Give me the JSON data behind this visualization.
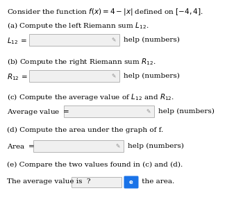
{
  "title_line": "Consider the function $f(x) = 4 - |x|$ defined on $[-4, 4]$.",
  "part_a_label": "(a) Compute the left Riemann sum $L_{12}$.",
  "part_a_var": "$L_{12}\\, =$",
  "part_b_label": "(b) Compute the right Riemann sum $R_{12}$.",
  "part_b_var": "$R_{12}\\, =$",
  "part_c_label": "(c) Compute the average value of $L_{12}$ and $R_{12}$.",
  "part_c_var": "Average value $=$",
  "part_d_label": "(d) Compute the area under the graph of f.",
  "part_d_var": "Area $=$",
  "part_e_label": "(e) Compare the two values found in (c) and (d).",
  "part_e_start": "The average value is  ?",
  "help_text": "help (numbers)",
  "button_color": "#1a73e8",
  "button_text": "e",
  "area_text": " the area.",
  "bg_color": "#ffffff",
  "text_color": "#000000",
  "input_box_color": "#f0f0f0",
  "input_box_border": "#aaaaaa",
  "pencil_color": "#888888",
  "font_size": 7.5,
  "label_font_size": 7.5
}
